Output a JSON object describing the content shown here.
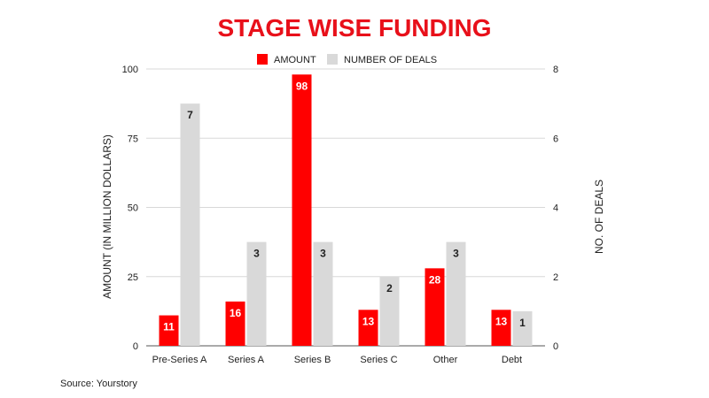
{
  "chart_data": {
    "type": "bar",
    "title": "STAGE WISE FUNDING",
    "categories": [
      "Pre-Series A",
      "Series A",
      "Series B",
      "Series C",
      "Other",
      "Debt"
    ],
    "series": [
      {
        "name": "AMOUNT",
        "axis": "left",
        "color": "#ff0000",
        "values": [
          11,
          16,
          98,
          13,
          28,
          13
        ]
      },
      {
        "name": "NUMBER OF DEALS",
        "axis": "right",
        "color": "#d9d9d9",
        "values": [
          7,
          3,
          3,
          2,
          3,
          1
        ]
      }
    ],
    "ylabel": "AMOUNT (IN MILLION DOLLARS)",
    "ylim": [
      0,
      100
    ],
    "yticks": [
      0,
      25,
      50,
      75,
      100
    ],
    "y2label": "NO. OF DEALS",
    "y2lim": [
      0,
      8
    ],
    "y2ticks": [
      0,
      2,
      4,
      6,
      8
    ],
    "legend_position": "top",
    "grid": true
  },
  "source": "Source: Yourstory",
  "colors": {
    "title": "#e8101a",
    "axis_text": "#222222",
    "grid": "#d8d8d8"
  }
}
